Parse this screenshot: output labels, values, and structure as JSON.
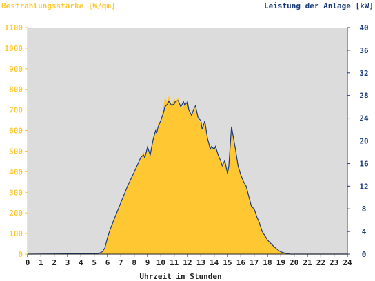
{
  "chart_data": {
    "type": "area",
    "title_left": "Bestrahlungsstärke [W/qm]",
    "title_right": "Leistung der Anlage [kW]",
    "xlabel": "Uhrzeit in Stunden",
    "x_ticks": [
      "0",
      "1",
      "2",
      "3",
      "4",
      "5",
      "6",
      "7",
      "8",
      "9",
      "10",
      "11",
      "12",
      "13",
      "14",
      "15",
      "16",
      "17",
      "18",
      "19",
      "20",
      "21",
      "22",
      "23",
      "24"
    ],
    "y_left_ticks": [
      "0",
      "100",
      "200",
      "300",
      "400",
      "500",
      "600",
      "700",
      "800",
      "900",
      "1000",
      "1100"
    ],
    "y_right_ticks": [
      "0",
      "4",
      "8",
      "12",
      "16",
      "20",
      "24",
      "28",
      "32",
      "36",
      "40"
    ],
    "xlim": [
      0,
      24
    ],
    "ylim_left": [
      0,
      1100
    ],
    "ylim_right": [
      0,
      40
    ],
    "grid": false,
    "colors": {
      "irradiance_fill": "#ffc832",
      "power_line": "#1a3a7a",
      "left_axis_text": "#ffc832",
      "right_axis_text": "#1a3a7a",
      "plot_background": "#dcdcdc"
    },
    "series": [
      {
        "axis": "left",
        "x": [
          0,
          5.3,
          5.6,
          5.8,
          6.0,
          6.2,
          6.5,
          7.0,
          7.5,
          8.0,
          8.5,
          8.7,
          8.8,
          9.0,
          9.2,
          9.4,
          9.6,
          9.7,
          9.8,
          10.0,
          10.2,
          10.3,
          10.5,
          10.6,
          10.8,
          11.0,
          11.1,
          11.3,
          11.5,
          11.7,
          11.8,
          12.0,
          12.1,
          12.3,
          12.5,
          12.6,
          12.8,
          13.0,
          13.1,
          13.3,
          13.5,
          13.6,
          13.7,
          13.8,
          14.0,
          14.1,
          14.3,
          14.5,
          14.6,
          14.8,
          15.0,
          15.1,
          15.3,
          15.5,
          15.6,
          15.8,
          16.0,
          16.2,
          16.4,
          16.6,
          16.8,
          17.0,
          17.2,
          17.4,
          17.6,
          17.8,
          18.0,
          18.2,
          18.5,
          18.8,
          19.0,
          19.3,
          19.5,
          19.7,
          20.0,
          24
        ],
        "y": [
          0,
          2,
          10,
          30,
          80,
          120,
          170,
          250,
          330,
          400,
          470,
          500,
          480,
          520,
          480,
          560,
          610,
          590,
          640,
          650,
          720,
          760,
          740,
          770,
          720,
          760,
          740,
          760,
          700,
          730,
          720,
          740,
          700,
          670,
          700,
          720,
          650,
          640,
          600,
          650,
          560,
          540,
          500,
          520,
          510,
          520,
          480,
          450,
          430,
          460,
          390,
          420,
          620,
          540,
          500,
          420,
          380,
          350,
          330,
          280,
          230,
          220,
          180,
          150,
          110,
          90,
          70,
          55,
          35,
          20,
          12,
          5,
          2,
          0,
          0,
          0
        ]
      },
      {
        "axis": "right",
        "x": [
          0,
          5.3,
          5.6,
          5.8,
          6.0,
          6.2,
          6.5,
          7.0,
          7.5,
          8.0,
          8.5,
          8.7,
          8.8,
          9.0,
          9.2,
          9.4,
          9.6,
          9.7,
          9.8,
          10.0,
          10.2,
          10.3,
          10.5,
          10.6,
          10.8,
          11.0,
          11.1,
          11.3,
          11.5,
          11.7,
          11.8,
          12.0,
          12.1,
          12.3,
          12.5,
          12.6,
          12.8,
          13.0,
          13.1,
          13.3,
          13.5,
          13.6,
          13.7,
          13.8,
          14.0,
          14.1,
          14.3,
          14.5,
          14.6,
          14.8,
          15.0,
          15.1,
          15.3,
          15.5,
          15.6,
          15.8,
          16.0,
          16.2,
          16.4,
          16.6,
          16.8,
          17.0,
          17.2,
          17.4,
          17.6,
          17.8,
          18.0,
          18.2,
          18.5,
          18.8,
          19.0,
          19.3,
          19.5,
          19.7,
          20.0,
          24
        ],
        "y": [
          0,
          0.1,
          0.4,
          1.1,
          2.9,
          4.4,
          6.2,
          9.1,
          12.0,
          14.5,
          17.1,
          17.5,
          17.0,
          18.9,
          17.5,
          20.0,
          21.8,
          21.5,
          22.5,
          23.6,
          25.0,
          26.0,
          26.5,
          27.0,
          26.3,
          26.5,
          27.0,
          27.1,
          26.0,
          26.9,
          26.3,
          26.9,
          25.5,
          24.5,
          25.8,
          26.2,
          24.0,
          23.6,
          22.0,
          23.5,
          20.4,
          19.6,
          18.5,
          19.0,
          18.5,
          19.0,
          17.5,
          16.4,
          15.6,
          16.5,
          14.2,
          15.5,
          22.5,
          19.8,
          18.5,
          15.5,
          14.0,
          12.8,
          12.0,
          10.2,
          8.4,
          8.0,
          6.6,
          5.5,
          4.0,
          3.3,
          2.5,
          2.0,
          1.3,
          0.7,
          0.4,
          0.2,
          0.1,
          0,
          0,
          0
        ]
      }
    ]
  }
}
